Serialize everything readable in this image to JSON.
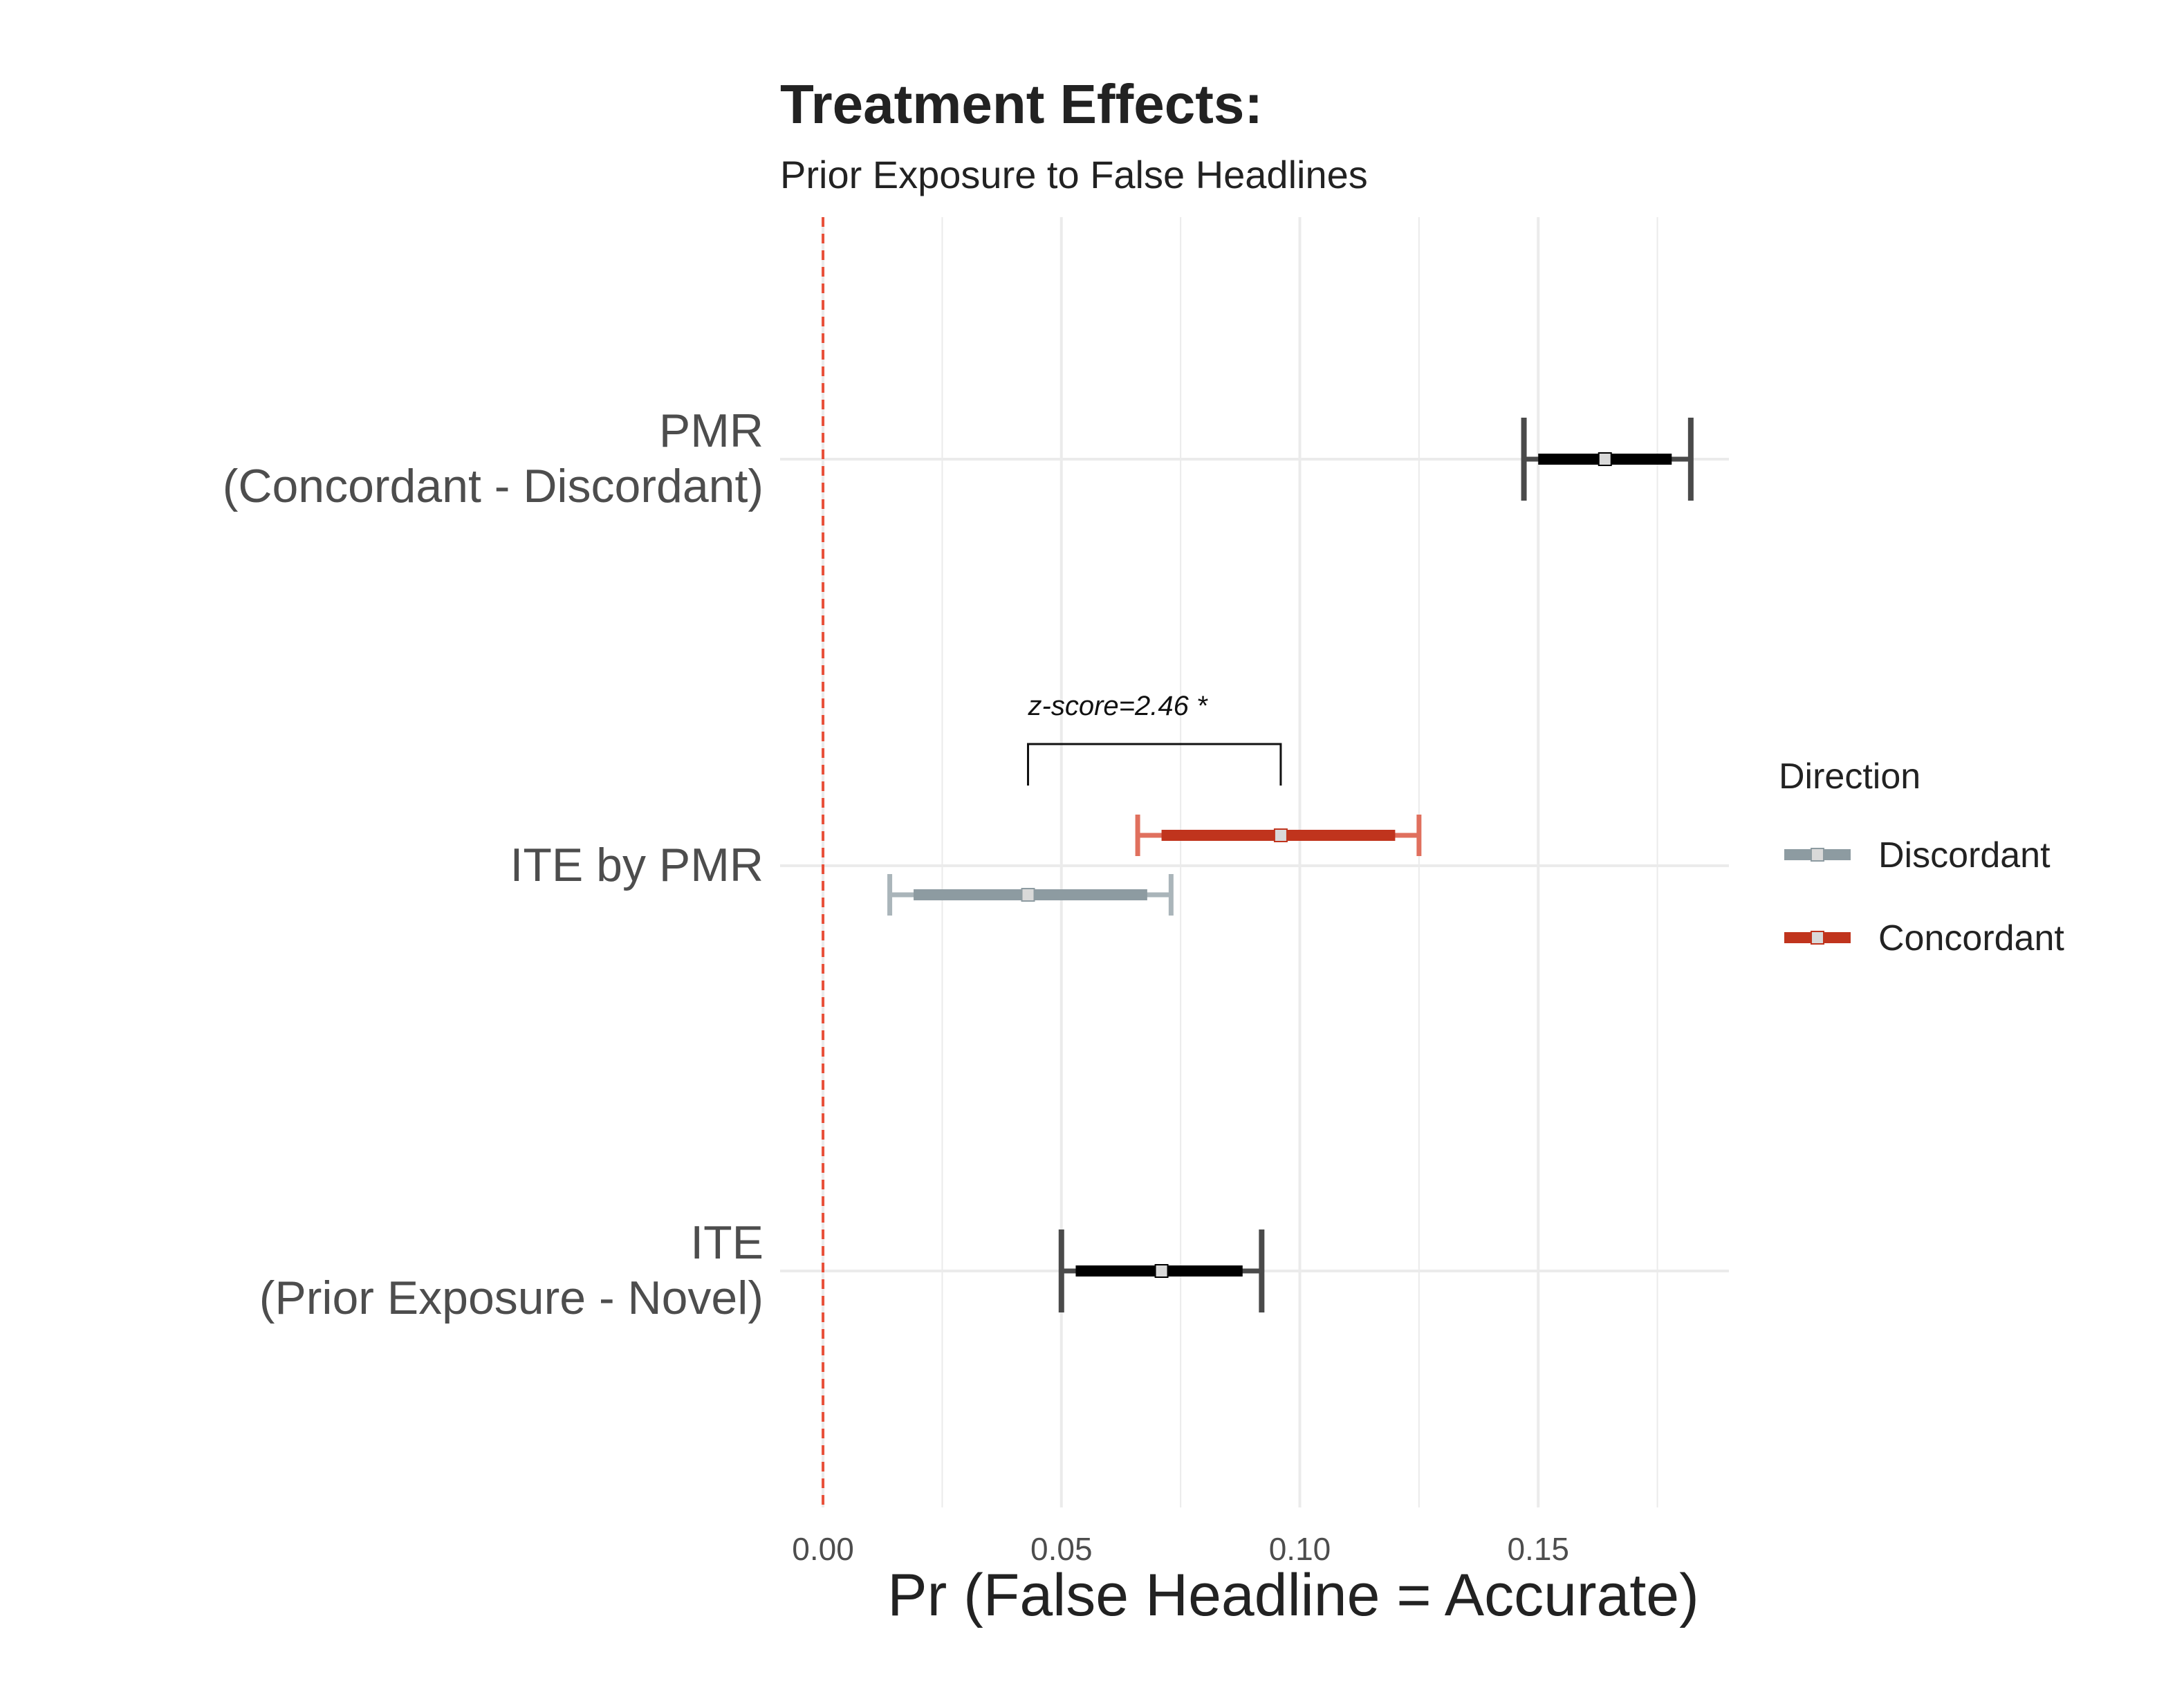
{
  "chart_data": {
    "type": "interval",
    "title": "Treatment Effects:",
    "subtitle": "Prior Exposure to False Headlines",
    "xlabel": "Pr (False Headline = Accurate)",
    "xlim": [
      -0.009,
      0.19
    ],
    "x_ticks": [
      0.0,
      0.05,
      0.1,
      0.15
    ],
    "x_tick_labels": [
      "0.00",
      "0.05",
      "0.10",
      "0.15"
    ],
    "grid": true,
    "reference_line": {
      "x": 0,
      "style": "dashed",
      "color": "#e8503a"
    },
    "categories": [
      {
        "key": "pmr",
        "lines": [
          "PMR",
          "(Concordant - Discordant)"
        ]
      },
      {
        "key": "ite_pmr",
        "lines": [
          "ITE by PMR"
        ]
      },
      {
        "key": "ite",
        "lines": [
          "ITE",
          "(Prior Exposure - Novel)"
        ]
      }
    ],
    "estimates": [
      {
        "category": "pmr",
        "series": null,
        "estimate": 0.164,
        "ci95": [
          0.147,
          0.182
        ],
        "ci_inner": [
          0.15,
          0.178
        ]
      },
      {
        "category": "ite_pmr",
        "series": "Concordant",
        "estimate": 0.096,
        "ci95": [
          0.066,
          0.125
        ],
        "ci_inner": [
          0.071,
          0.12
        ]
      },
      {
        "category": "ite_pmr",
        "series": "Discordant",
        "estimate": 0.043,
        "ci95": [
          0.014,
          0.073
        ],
        "ci_inner": [
          0.019,
          0.068
        ]
      },
      {
        "category": "ite",
        "series": null,
        "estimate": 0.071,
        "ci95": [
          0.05,
          0.092
        ],
        "ci_inner": [
          0.053,
          0.088
        ]
      }
    ],
    "annotation": {
      "text": "z-score=2.46 *",
      "from": 0.043,
      "to": 0.096
    },
    "legend": {
      "title": "Direction",
      "placement": "right",
      "items": [
        {
          "name": "Discordant",
          "color": "#8d9ba1",
          "cap_color": "#aab5ba"
        },
        {
          "name": "Concordant",
          "color": "#c0341d",
          "cap_color": "#e0705e"
        }
      ]
    },
    "colors": {
      "overall": "#000000",
      "overall_cap": "#4a4a4a",
      "point_fill": "#d9d9d9",
      "grid": "#ebebeb"
    }
  }
}
